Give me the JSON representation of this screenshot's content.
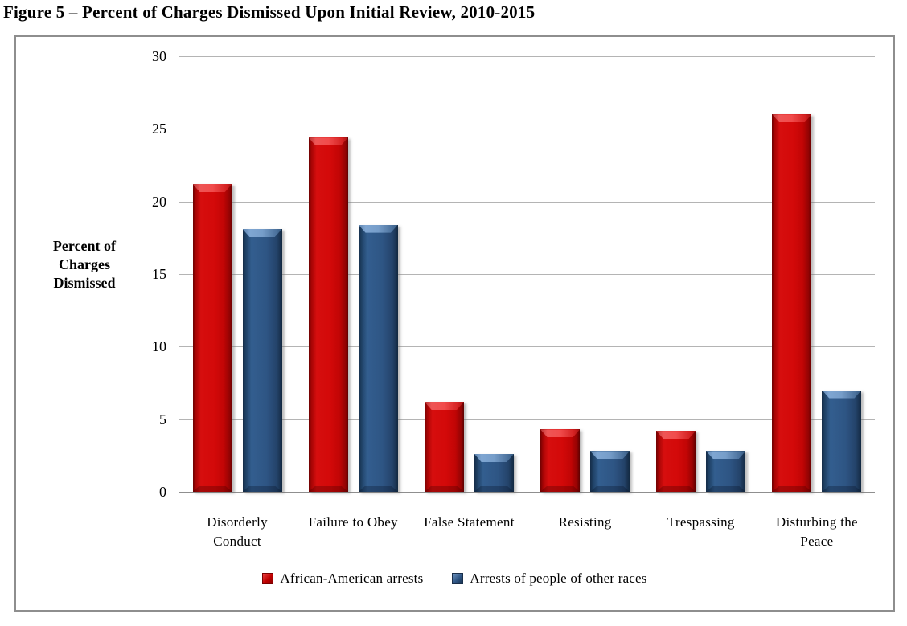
{
  "title": "Figure 5 – Percent of Charges Dismissed Upon Initial Review, 2010-2015",
  "chart_data": {
    "type": "bar",
    "title": "Figure 5 – Percent of Charges Dismissed Upon Initial Review, 2010-2015",
    "categories": [
      "Disorderly Conduct",
      "Failure to Obey",
      "False Statement",
      "Resisting",
      "Trespassing",
      "Disturbing the Peace"
    ],
    "categories_display": [
      "Disorderly\nConduct",
      "Failure to Obey",
      "False Statement",
      "Resisting",
      "Trespassing",
      "Disturbing the\nPeace"
    ],
    "series": [
      {
        "name": "African-American arrests",
        "color": "#C00000",
        "values": [
          21.2,
          24.4,
          6.2,
          4.3,
          4.2,
          26.0
        ]
      },
      {
        "name": "Arrests of people of other races",
        "color": "#2E5584",
        "values": [
          18.1,
          18.4,
          2.6,
          2.8,
          2.8,
          7.0
        ]
      }
    ],
    "xlabel": "",
    "ylabel": "Percent of\nCharges\nDismissed",
    "ylim": [
      0,
      30
    ],
    "yticks": [
      30,
      25,
      20,
      15,
      10,
      5,
      0
    ],
    "grid": true,
    "gridline_color": "#b4b4b4",
    "legend_position": "bottom",
    "plot_background": "#ffffff"
  }
}
